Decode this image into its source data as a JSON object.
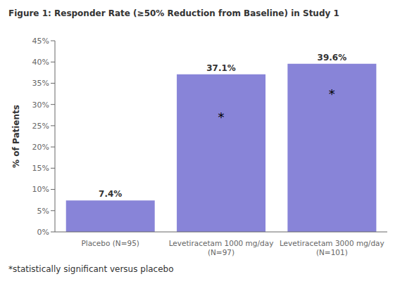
{
  "chart_data": {
    "type": "bar",
    "title": "Figure 1: Responder Rate (≥50% Reduction from Baseline) in Study 1",
    "categories": [
      "Placebo (N=95)",
      "Levetiracetam 1000 mg/day\n(N=97)",
      "Levetiracetam 3000 mg/day\n(N=101)"
    ],
    "values": [
      7.4,
      37.1,
      39.6
    ],
    "value_labels": [
      "7.4%",
      "37.1%",
      "39.6%"
    ],
    "data_labels": true,
    "color": "#8884d8",
    "ylabel": "% of Patients",
    "ylim": [
      0,
      45
    ],
    "yticks": [
      {
        "value": 0,
        "label": "0%"
      },
      {
        "value": 5,
        "label": "5%"
      },
      {
        "value": 10,
        "label": "10%"
      },
      {
        "value": 15,
        "label": "15%"
      },
      {
        "value": 20,
        "label": "20%"
      },
      {
        "value": 25,
        "label": "25%"
      },
      {
        "value": 30,
        "label": "30%"
      },
      {
        "value": 35,
        "label": "35%"
      },
      {
        "value": 40,
        "label": "40%"
      },
      {
        "value": 45,
        "label": "45%"
      }
    ],
    "grid": false,
    "annotations": [
      {
        "text": "*",
        "x": "Levetiracetam 1000 mg/day\n(N=97)",
        "y": 27.0
      },
      {
        "text": "*",
        "x": "Levetiracetam 3000 mg/day\n(N=101)",
        "y": 32.5
      }
    ],
    "footnote": "*statistically significant versus placebo"
  }
}
